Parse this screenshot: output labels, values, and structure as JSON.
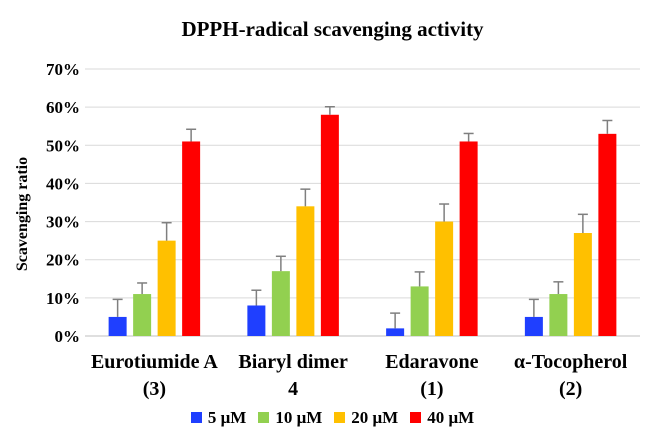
{
  "chart_data": {
    "type": "bar",
    "title": "DPPH-radical scavenging activity",
    "xlabel": "",
    "ylabel": "Scavenging ratio",
    "ylim": [
      0,
      70
    ],
    "yticks": [
      "0%",
      "10%",
      "20%",
      "30%",
      "40%",
      "50%",
      "60%",
      "70%"
    ],
    "categories": [
      [
        "Eurotiumide A",
        "(3)"
      ],
      [
        "Biaryl dimer",
        "4"
      ],
      [
        "Edaravone",
        "(1)"
      ],
      [
        "α-Tocopherol",
        "(2)"
      ]
    ],
    "series": [
      {
        "name": "5 μM",
        "color": "#1f3fff",
        "values": [
          5,
          8,
          2,
          5
        ],
        "errors": [
          4.6,
          4,
          4,
          4.6
        ]
      },
      {
        "name": "10 μM",
        "color": "#92d050",
        "values": [
          11,
          17,
          13,
          11
        ],
        "errors": [
          2.9,
          3.9,
          3.8,
          3.2
        ]
      },
      {
        "name": "20 μM",
        "color": "#ffc000",
        "values": [
          25,
          34,
          30,
          27
        ],
        "errors": [
          4.7,
          4.5,
          4.6,
          4.9
        ]
      },
      {
        "name": "40 μM",
        "color": "#ff0000",
        "values": [
          51,
          58,
          51,
          53
        ],
        "errors": [
          3.2,
          2.1,
          2.1,
          3.5
        ]
      }
    ],
    "grid": true,
    "legend": "bottom",
    "error_bars": true
  }
}
